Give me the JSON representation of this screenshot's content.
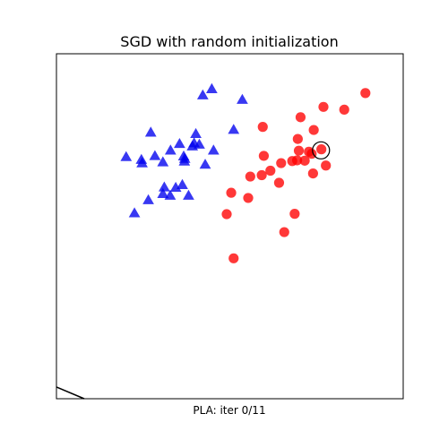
{
  "chart_data": {
    "type": "scatter",
    "title": "SGD with random initialization",
    "xlabel": "PLA: iter 0/11",
    "ylabel": "",
    "xlim": [
      0,
      100
    ],
    "ylim": [
      0,
      100
    ],
    "grid": false,
    "ticks": false,
    "series": [
      {
        "marker": "triangle",
        "color": "#0000ee",
        "points": [
          [
            42.2,
            88.0
          ],
          [
            44.8,
            89.8
          ],
          [
            53.6,
            86.7
          ],
          [
            51.1,
            78.0
          ],
          [
            40.2,
            76.8
          ],
          [
            27.2,
            77.2
          ],
          [
            20.1,
            70.1
          ],
          [
            24.5,
            69.3
          ],
          [
            24.7,
            68.3
          ],
          [
            28.4,
            70.4
          ],
          [
            30.7,
            68.6
          ],
          [
            32.9,
            72.0
          ],
          [
            35.5,
            73.9
          ],
          [
            36.7,
            70.3
          ],
          [
            36.9,
            68.8
          ],
          [
            37.0,
            69.6
          ],
          [
            39.7,
            74.1
          ],
          [
            39.2,
            73.2
          ],
          [
            41.2,
            73.7
          ],
          [
            42.9,
            67.9
          ],
          [
            45.3,
            72.0
          ],
          [
            36.3,
            62.0
          ],
          [
            34.4,
            61.2
          ],
          [
            31.1,
            61.3
          ],
          [
            30.7,
            59.4
          ],
          [
            32.8,
            58.9
          ],
          [
            38.1,
            58.9
          ],
          [
            26.5,
            57.6
          ],
          [
            22.5,
            53.8
          ]
        ]
      },
      {
        "marker": "circle",
        "color": "#ff0000",
        "points": [
          [
            89.1,
            88.6
          ],
          [
            83.0,
            83.8
          ],
          [
            77.0,
            84.6
          ],
          [
            70.4,
            81.6
          ],
          [
            59.5,
            78.8
          ],
          [
            74.2,
            77.9
          ],
          [
            69.6,
            75.3
          ],
          [
            76.4,
            72.3
          ],
          [
            69.9,
            71.9
          ],
          [
            72.8,
            71.6
          ],
          [
            59.8,
            70.4
          ],
          [
            69.4,
            69.1
          ],
          [
            71.6,
            69.0
          ],
          [
            68.0,
            68.9
          ],
          [
            64.8,
            68.3
          ],
          [
            73.6,
            71.0
          ],
          [
            77.7,
            67.6
          ],
          [
            74.0,
            65.3
          ],
          [
            61.7,
            66.1
          ],
          [
            59.2,
            64.8
          ],
          [
            55.9,
            64.4
          ],
          [
            64.2,
            62.6
          ],
          [
            50.4,
            59.7
          ],
          [
            55.3,
            58.2
          ],
          [
            49.1,
            53.5
          ],
          [
            68.7,
            53.6
          ],
          [
            65.7,
            48.3
          ],
          [
            51.1,
            40.7
          ]
        ]
      }
    ],
    "highlight": {
      "x": 76.3,
      "y": 72.0
    },
    "decision_line": {
      "x1": 0,
      "y1": 3.4,
      "x2": 8,
      "y2": 0
    }
  }
}
